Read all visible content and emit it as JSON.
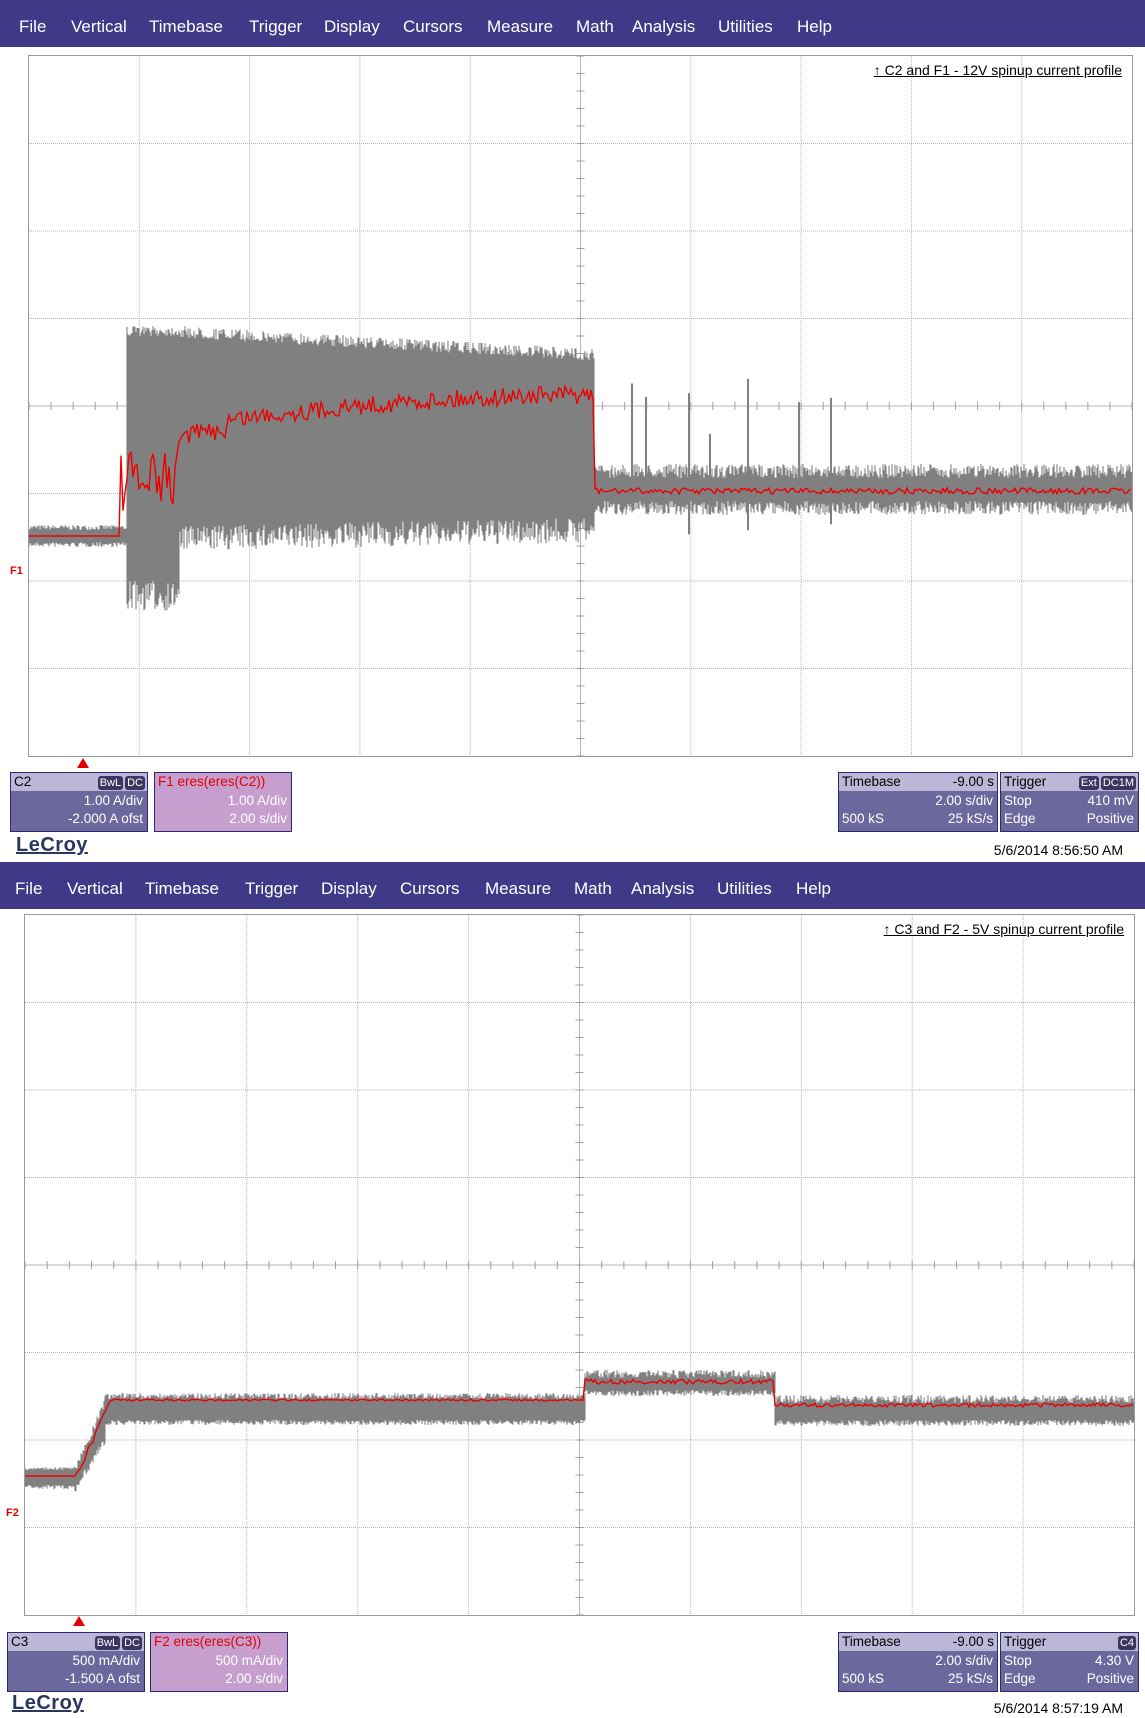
{
  "menu": [
    "File",
    "Vertical",
    "Timebase",
    "Trigger",
    "Display",
    "Cursors",
    "Measure",
    "Math",
    "Analysis",
    "Utilities",
    "Help"
  ],
  "colors": {
    "menubar": "#3f3987",
    "trace_raw": "#808080",
    "trace_filtered": "#ee0000",
    "panel": "#6b689d",
    "math_panel": "#c79fcf"
  },
  "scopes": [
    {
      "caption": "↑ C2 and F1 - 12V spinup current profile",
      "trace_label": "F1",
      "channel": {
        "name": "C2",
        "badge1": "BwL",
        "badge2": "DC",
        "vdiv": "1.00 A/div",
        "offset": "-2.000 A ofst"
      },
      "math": {
        "title": "F1   eres(eres(C2))",
        "vdiv": "1.00 A/div",
        "tdiv": "2.00 s/div"
      },
      "timebase": {
        "label": "Timebase",
        "delay": "-9.00 s",
        "tdiv": "2.00 s/div",
        "samples": "500 kS",
        "rate": "25 kS/s"
      },
      "trigger": {
        "label": "Trigger",
        "badge1": "Ext",
        "badge2": "DC1M",
        "mode": "Stop",
        "level": "410 mV",
        "type": "Edge",
        "slope": "Positive"
      },
      "logo": "LeCroy",
      "timestamp": "5/6/2014 8:56:50 AM"
    },
    {
      "caption": "↑ C3 and F2 - 5V spinup current profile",
      "trace_label": "F2",
      "channel": {
        "name": "C3",
        "badge1": "BwL",
        "badge2": "DC",
        "vdiv": "500 mA/div",
        "offset": "-1.500 A ofst"
      },
      "math": {
        "title": "F2   eres(eres(C3))",
        "vdiv": "500 mA/div",
        "tdiv": "2.00 s/div"
      },
      "timebase": {
        "label": "Timebase",
        "delay": "-9.00 s",
        "tdiv": "2.00 s/div",
        "samples": "500 kS",
        "rate": "25 kS/s"
      },
      "trigger": {
        "label": "Trigger",
        "badge1": "C4",
        "badge2": "",
        "mode": "Stop",
        "level": "4.30 V",
        "type": "Edge",
        "slope": "Positive"
      },
      "logo": "LeCroy",
      "timestamp": "5/6/2014 8:57:19 AM"
    }
  ]
}
